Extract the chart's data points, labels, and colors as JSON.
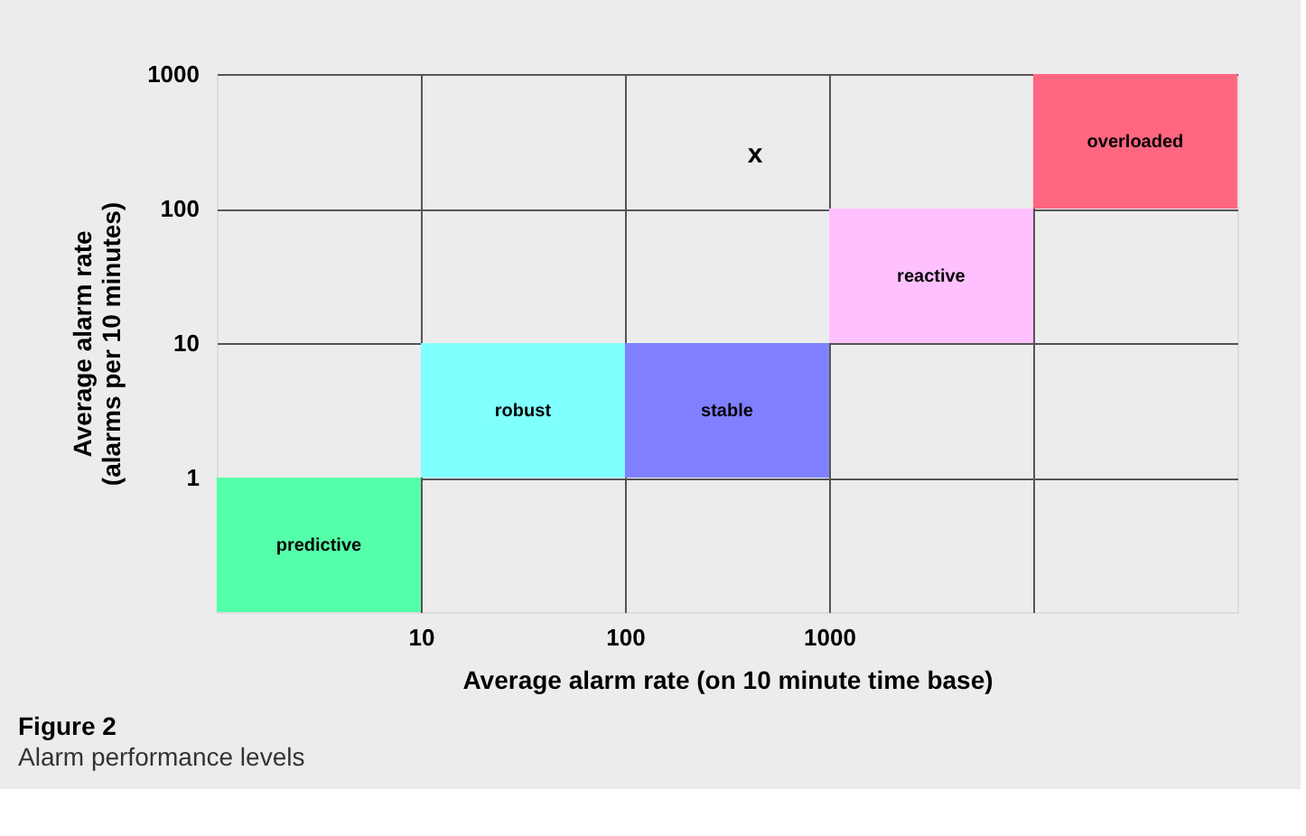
{
  "chart_data": {
    "type": "bar",
    "title": "Figure 2",
    "subtitle": "Alarm performance levels",
    "xlabel": "Average alarm rate (on 10 minute time base)",
    "ylabel": "Average alarm rate\n(alarms per 10 minutes)",
    "log": "xy",
    "xlim": [
      1,
      100000
    ],
    "ylim": [
      0.1,
      1000
    ],
    "xticks": [
      10,
      100,
      1000,
      {
        "value": 10000,
        "label": null
      }
    ],
    "yticks": [
      1,
      10,
      100,
      1000
    ],
    "grid": true,
    "series": [
      {
        "x": [
          3.16,
          31.6,
          316,
          3160,
          31600
        ],
        "base": [
          0.1,
          1,
          1,
          10,
          100
        ],
        "values": [
          0.9,
          9,
          9,
          90,
          900
        ],
        "colors": [
          "#55ffaa",
          "#80ffff",
          "#8080ff",
          "#ffc0ff",
          "#ff6680"
        ],
        "value_labels": [
          "predictive",
          "robust",
          "stable",
          "reactive",
          "overloaded"
        ]
      }
    ],
    "annotations": [
      "x"
    ]
  }
}
